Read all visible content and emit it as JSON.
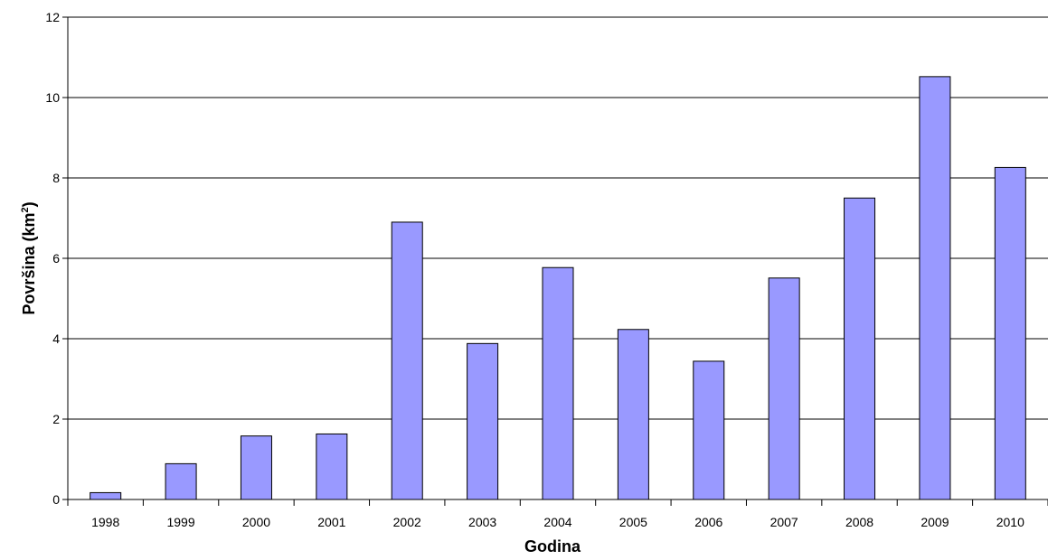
{
  "chart_data": {
    "type": "bar",
    "categories": [
      "1998",
      "1999",
      "2000",
      "2001",
      "2002",
      "2003",
      "2004",
      "2005",
      "2006",
      "2007",
      "2008",
      "2009",
      "2010"
    ],
    "values": [
      0.17,
      0.89,
      1.58,
      1.63,
      6.9,
      3.88,
      5.77,
      4.23,
      3.44,
      5.51,
      7.5,
      10.52,
      8.26
    ],
    "xlabel": "Godina",
    "ylabel": "Površina (km",
    "ylabel_superscript": "2",
    "ylabel_suffix": ")",
    "ylim": [
      0,
      12
    ],
    "yticks": [
      0,
      2,
      4,
      6,
      8,
      10,
      12
    ],
    "grid": true,
    "legend": "none",
    "colors": {
      "bar_fill": "#9999ff",
      "bar_stroke": "#000000",
      "grid": "#000000",
      "axis": "#000000"
    }
  }
}
